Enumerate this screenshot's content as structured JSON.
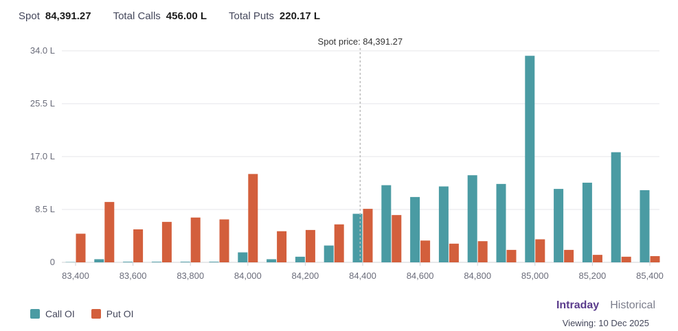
{
  "summary": {
    "spot_label": "Spot",
    "spot_value": "84,391.27",
    "calls_label": "Total Calls",
    "calls_value": "456.00 L",
    "puts_label": "Total Puts",
    "puts_value": "220.17 L"
  },
  "legend": {
    "call_label": "Call OI",
    "put_label": "Put OI"
  },
  "modes": {
    "intraday": "Intraday",
    "historical": "Historical",
    "active": "intraday"
  },
  "viewing": "Viewing: 10 Dec 2025",
  "colors": {
    "call": "#4a9ba3",
    "put": "#d35f3c",
    "grid": "#e4e4e8",
    "axis_text": "#6a6c7a",
    "spot_line": "#bbbbbb"
  },
  "chart_data": {
    "type": "bar",
    "strikes": [
      83400,
      83500,
      83600,
      83700,
      83800,
      83900,
      84000,
      84100,
      84200,
      84300,
      84400,
      84500,
      84600,
      84700,
      84800,
      84900,
      85000,
      85100,
      85200,
      85300,
      85400
    ],
    "x_tick_values": [
      83400,
      83600,
      83800,
      84000,
      84200,
      84400,
      84600,
      84800,
      85000,
      85200,
      85400
    ],
    "x_tick_labels": [
      "83,400",
      "83,600",
      "83,800",
      "84,000",
      "84,200",
      "84,400",
      "84,600",
      "84,800",
      "85,000",
      "85,200",
      "85,400"
    ],
    "y_tick_values": [
      0,
      8.5,
      17.0,
      25.5,
      34.0
    ],
    "y_tick_labels": [
      "0",
      "8.5 L",
      "17.0 L",
      "25.5 L",
      "34.0 L"
    ],
    "ylim": [
      0,
      34.0
    ],
    "grid": true,
    "legend_position": "bottom-left",
    "spot_price": 84391.27,
    "spot_annotation": "Spot price: 84,391.27",
    "series": [
      {
        "name": "Call OI",
        "key": "call",
        "values": [
          0.05,
          0.5,
          0.1,
          0.1,
          0.1,
          0.1,
          1.6,
          0.5,
          0.9,
          2.7,
          7.8,
          12.4,
          10.5,
          12.2,
          14.0,
          12.6,
          33.2,
          11.8,
          12.8,
          17.7,
          11.6
        ]
      },
      {
        "name": "Put OI",
        "key": "put",
        "values": [
          4.6,
          9.7,
          5.3,
          6.5,
          7.2,
          6.9,
          14.2,
          5.0,
          5.2,
          6.1,
          8.6,
          7.6,
          3.5,
          3.0,
          3.4,
          2.0,
          3.7,
          2.0,
          1.2,
          0.9,
          1.0
        ]
      }
    ]
  }
}
